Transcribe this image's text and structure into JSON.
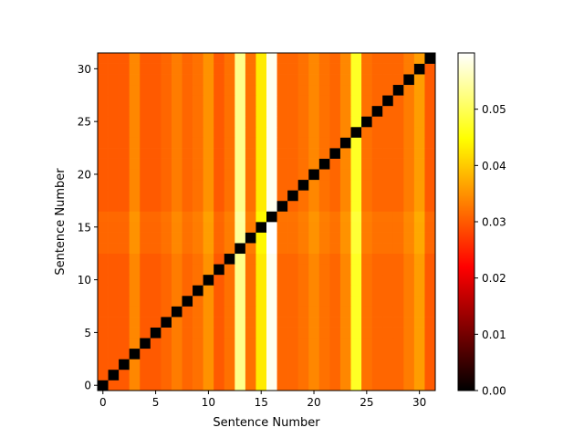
{
  "chart_data": {
    "type": "heatmap",
    "title": "",
    "xlabel": "Sentence Number",
    "ylabel": "Sentence Number",
    "n": 32,
    "x_ticks": [
      0,
      5,
      10,
      15,
      20,
      25,
      30
    ],
    "y_ticks": [
      0,
      5,
      10,
      15,
      20,
      25,
      30
    ],
    "origin": "lower",
    "colormap": "hot",
    "vmin": 0.0,
    "vmax": 0.06,
    "colorbar_ticks": [
      "0.00",
      "0.01",
      "0.02",
      "0.03",
      "0.04",
      "0.05"
    ],
    "colorbar_tick_values": [
      0.0,
      0.01,
      0.02,
      0.03,
      0.04,
      0.05
    ],
    "diagonal_value": 0.0,
    "column_values": [
      0.03,
      0.03,
      0.03,
      0.034,
      0.03,
      0.03,
      0.031,
      0.033,
      0.031,
      0.032,
      0.035,
      0.03,
      0.032,
      0.053,
      0.032,
      0.043,
      0.059,
      0.031,
      0.031,
      0.032,
      0.034,
      0.032,
      0.031,
      0.034,
      0.047,
      0.032,
      0.031,
      0.031,
      0.031,
      0.033,
      0.036,
      0.03
    ],
    "row_offsets": {
      "13": 0.001,
      "14": 0.001,
      "15": 0.001,
      "16": 0.0012
    }
  }
}
